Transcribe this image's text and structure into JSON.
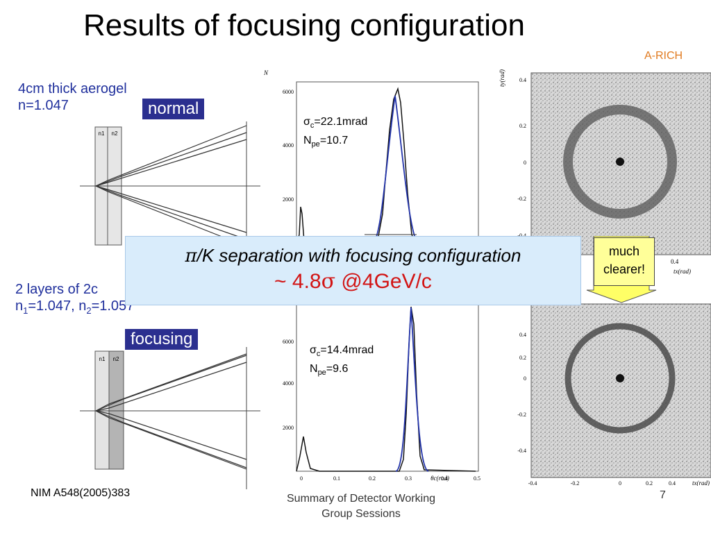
{
  "title": "Results of focusing configuration",
  "corner_label": "A-RICH",
  "normal": {
    "desc_line1": "4cm thick aerogel",
    "desc_line2": "n=1.047",
    "tag": "normal",
    "layer_labels": [
      "n1",
      "n2"
    ],
    "sigma_label": "σ",
    "sigma_sub": "c",
    "sigma_value": "=22.1mrad",
    "npe_label": "N",
    "npe_sub": "pe",
    "npe_value": "=10.7",
    "y_ticks": [
      "6000",
      "4000",
      "2000"
    ]
  },
  "focusing": {
    "desc_line1": "2 layers of 2c",
    "desc_line2_a": "n",
    "desc_line2_sub1": "1",
    "desc_line2_b": "=1.047, n",
    "desc_line2_sub2": "2",
    "desc_line2_c": "=1.057",
    "tag": "focusing",
    "layer_labels": [
      "n1",
      "n2"
    ],
    "sigma_label": "σ",
    "sigma_sub": "c",
    "sigma_value": "=14.4mrad",
    "npe_label": "N",
    "npe_sub": "pe",
    "npe_value": "=9.6",
    "y_ticks": [
      "6000",
      "4000",
      "2000"
    ],
    "x_ticks": [
      "0",
      "0.1",
      "0.2",
      "0.3",
      "0.4",
      "0.5"
    ],
    "x_axis_label": "θc(rad)"
  },
  "ring_plot": {
    "y_axis_label": "ty(rad)",
    "x_axis_label": "tx(rad)",
    "y_ticks_top": [
      "0.4",
      "0.2",
      "0",
      "-0.2",
      "-0.4"
    ],
    "y_ticks_bottom": [
      "0.4",
      "0.2",
      "0",
      "-0.2",
      "-0.4"
    ],
    "x_ticks": [
      "-0.4",
      "-0.2",
      "0",
      "0.2",
      "0.4"
    ],
    "x_tick_partial": "0.4"
  },
  "histo_y_label": "N",
  "banner": {
    "line1_symbol": "π",
    "line1_text": "/K separation with focusing configuration",
    "line2_prefix": "~ 4.8",
    "line2_symbol": "σ",
    "line2_suffix": " @4GeV/c"
  },
  "callout": {
    "line1": "much",
    "line2": "clearer!"
  },
  "reference": "NIM A548(2005)383",
  "footer": {
    "line1": "Summary of Detector Working",
    "line2": "Group  Sessions"
  },
  "page_number": "7",
  "colors": {
    "banner_bg": "#d9ecfb",
    "banner_accent": "#d21414",
    "tag_bg": "#2b2f8f",
    "desc_text": "#1f2f9c",
    "corner": "#e07a1f",
    "callout_bg": "#ffff99"
  }
}
